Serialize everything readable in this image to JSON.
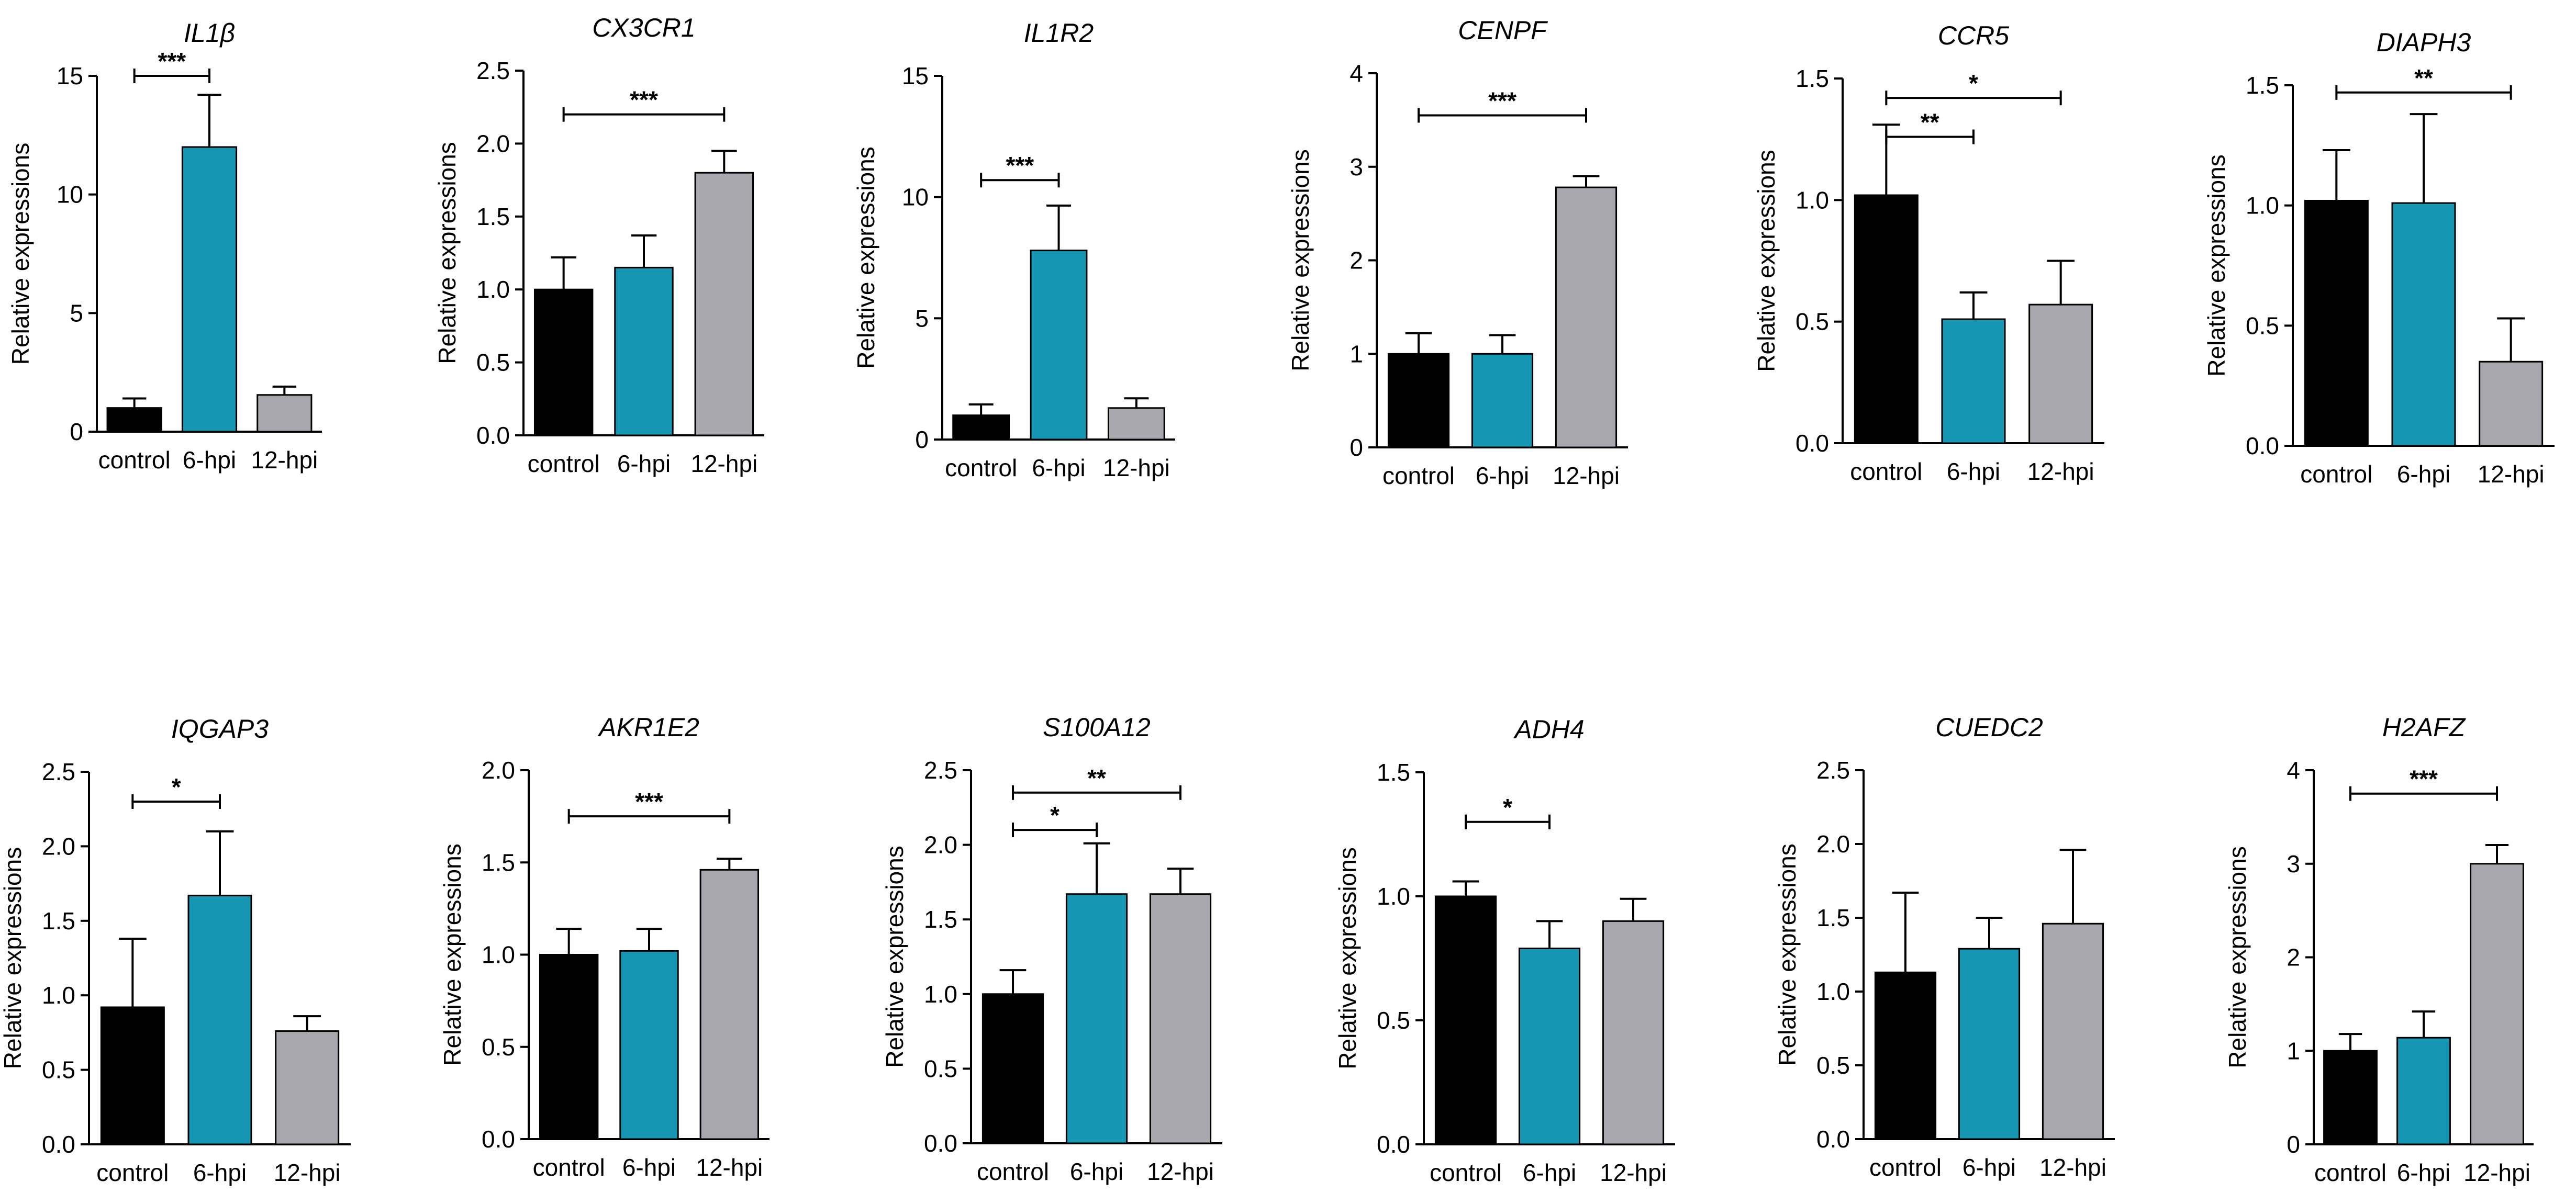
{
  "figure": {
    "ylabel_common": "Relative expressions"
  },
  "chart_data": [
    {
      "type": "bar",
      "title": "IL1β",
      "xlabel": "",
      "ylabel": "Relative expressions",
      "categories": [
        "control",
        "6-hpi",
        "12-hpi"
      ],
      "values": [
        1.0,
        12.0,
        1.55
      ],
      "errors": [
        0.4,
        2.2,
        0.35
      ],
      "colors": [
        "#000000",
        "#1597b4",
        "#a8a7ad"
      ],
      "ylim": [
        0,
        15
      ],
      "yticks": [
        "0",
        "5",
        "10",
        "15"
      ],
      "significance": [
        {
          "from": 0,
          "to": 1,
          "label": "***",
          "y": 15.0
        }
      ]
    },
    {
      "type": "bar",
      "title": "CX3CR1",
      "xlabel": "",
      "ylabel": "Relative expressions",
      "categories": [
        "control",
        "6-hpi",
        "12-hpi"
      ],
      "values": [
        1.0,
        1.15,
        1.8
      ],
      "errors": [
        0.22,
        0.22,
        0.15
      ],
      "colors": [
        "#000000",
        "#1597b4",
        "#a8a7ad"
      ],
      "ylim": [
        0,
        2.5
      ],
      "yticks": [
        "0.0",
        "0.5",
        "1.0",
        "1.5",
        "2.0",
        "2.5"
      ],
      "significance": [
        {
          "from": 0,
          "to": 2,
          "label": "***",
          "y": 2.2
        }
      ]
    },
    {
      "type": "bar",
      "title": "IL1R2",
      "xlabel": "",
      "ylabel": "Relative expressions",
      "categories": [
        "control",
        "6-hpi",
        "12-hpi"
      ],
      "values": [
        1.0,
        7.8,
        1.3
      ],
      "errors": [
        0.45,
        1.85,
        0.4
      ],
      "colors": [
        "#000000",
        "#1597b4",
        "#a8a7ad"
      ],
      "ylim": [
        0,
        15
      ],
      "yticks": [
        "0",
        "5",
        "10",
        "15"
      ],
      "significance": [
        {
          "from": 0,
          "to": 1,
          "label": "***",
          "y": 10.7
        }
      ]
    },
    {
      "type": "bar",
      "title": "CENPF",
      "xlabel": "",
      "ylabel": "Relative expressions",
      "categories": [
        "control",
        "6-hpi",
        "12-hpi"
      ],
      "values": [
        1.0,
        1.0,
        2.78
      ],
      "errors": [
        0.22,
        0.2,
        0.12
      ],
      "colors": [
        "#000000",
        "#1597b4",
        "#a8a7ad"
      ],
      "ylim": [
        0,
        4
      ],
      "yticks": [
        "0",
        "1",
        "2",
        "3",
        "4"
      ],
      "significance": [
        {
          "from": 0,
          "to": 2,
          "label": "***",
          "y": 3.55
        }
      ]
    },
    {
      "type": "bar",
      "title": "CCR5",
      "xlabel": "",
      "ylabel": "Relative expressions",
      "categories": [
        "control",
        "6-hpi",
        "12-hpi"
      ],
      "values": [
        1.02,
        0.51,
        0.57
      ],
      "errors": [
        0.29,
        0.11,
        0.18
      ],
      "colors": [
        "#000000",
        "#1597b4",
        "#a8a7ad"
      ],
      "ylim": [
        0,
        1.5
      ],
      "yticks": [
        "0.0",
        "0.5",
        "1.0",
        "1.5"
      ],
      "significance": [
        {
          "from": 0,
          "to": 1,
          "label": "**",
          "y": 1.26
        },
        {
          "from": 0,
          "to": 2,
          "label": "*",
          "y": 1.42
        }
      ]
    },
    {
      "type": "bar",
      "title": "DIAPH3",
      "xlabel": "",
      "ylabel": "Relative expressions",
      "categories": [
        "control",
        "6-hpi",
        "12-hpi"
      ],
      "values": [
        1.02,
        1.01,
        0.35
      ],
      "errors": [
        0.21,
        0.37,
        0.18
      ],
      "colors": [
        "#000000",
        "#1597b4",
        "#a8a7ad"
      ],
      "ylim": [
        0,
        1.5
      ],
      "yticks": [
        "0.0",
        "0.5",
        "1.0",
        "1.5"
      ],
      "significance": [
        {
          "from": 0,
          "to": 2,
          "label": "**",
          "y": 1.47
        }
      ]
    },
    {
      "type": "bar",
      "title": "IQGAP3",
      "xlabel": "",
      "ylabel": "Relative expressions",
      "categories": [
        "control",
        "6-hpi",
        "12-hpi"
      ],
      "values": [
        0.92,
        1.67,
        0.76
      ],
      "errors": [
        0.46,
        0.43,
        0.1
      ],
      "colors": [
        "#000000",
        "#1597b4",
        "#a8a7ad"
      ],
      "ylim": [
        0,
        2.5
      ],
      "yticks": [
        "0.0",
        "0.5",
        "1.0",
        "1.5",
        "2.0",
        "2.5"
      ],
      "significance": [
        {
          "from": 0,
          "to": 1,
          "label": "*",
          "y": 2.3
        }
      ]
    },
    {
      "type": "bar",
      "title": "AKR1E2",
      "xlabel": "",
      "ylabel": "Relative expressions",
      "categories": [
        "control",
        "6-hpi",
        "12-hpi"
      ],
      "values": [
        1.0,
        1.02,
        1.46
      ],
      "errors": [
        0.14,
        0.12,
        0.06
      ],
      "colors": [
        "#000000",
        "#1597b4",
        "#a8a7ad"
      ],
      "ylim": [
        0,
        2.0
      ],
      "yticks": [
        "0.0",
        "0.5",
        "1.0",
        "1.5",
        "2.0"
      ],
      "significance": [
        {
          "from": 0,
          "to": 2,
          "label": "***",
          "y": 1.75
        }
      ]
    },
    {
      "type": "bar",
      "title": "S100A12",
      "xlabel": "",
      "ylabel": "Relative expressions",
      "categories": [
        "control",
        "6-hpi",
        "12-hpi"
      ],
      "values": [
        1.0,
        1.67,
        1.67
      ],
      "errors": [
        0.16,
        0.34,
        0.17
      ],
      "colors": [
        "#000000",
        "#1597b4",
        "#a8a7ad"
      ],
      "ylim": [
        0,
        2.5
      ],
      "yticks": [
        "0.0",
        "0.5",
        "1.0",
        "1.5",
        "2.0",
        "2.5"
      ],
      "significance": [
        {
          "from": 0,
          "to": 1,
          "label": "*",
          "y": 2.1
        },
        {
          "from": 0,
          "to": 2,
          "label": "**",
          "y": 2.35
        }
      ]
    },
    {
      "type": "bar",
      "title": "ADH4",
      "xlabel": "",
      "ylabel": "Relative expressions",
      "categories": [
        "control",
        "6-hpi",
        "12-hpi"
      ],
      "values": [
        1.0,
        0.79,
        0.9
      ],
      "errors": [
        0.06,
        0.11,
        0.09
      ],
      "colors": [
        "#000000",
        "#1597b4",
        "#a8a7ad"
      ],
      "ylim": [
        0,
        1.5
      ],
      "yticks": [
        "0.0",
        "0.5",
        "1.0",
        "1.5"
      ],
      "significance": [
        {
          "from": 0,
          "to": 1,
          "label": "*",
          "y": 1.3
        }
      ]
    },
    {
      "type": "bar",
      "title": "CUEDC2",
      "xlabel": "",
      "ylabel": "Relative expressions",
      "categories": [
        "control",
        "6-hpi",
        "12-hpi"
      ],
      "values": [
        1.13,
        1.29,
        1.46
      ],
      "errors": [
        0.54,
        0.21,
        0.5
      ],
      "colors": [
        "#000000",
        "#1597b4",
        "#a8a7ad"
      ],
      "ylim": [
        0,
        2.5
      ],
      "yticks": [
        "0.0",
        "0.5",
        "1.0",
        "1.5",
        "2.0",
        "2.5"
      ],
      "significance": []
    },
    {
      "type": "bar",
      "title": "H2AFZ",
      "xlabel": "",
      "ylabel": "Relative expressions",
      "categories": [
        "control",
        "6-hpi",
        "12-hpi"
      ],
      "values": [
        1.0,
        1.14,
        3.0
      ],
      "errors": [
        0.18,
        0.28,
        0.2
      ],
      "colors": [
        "#000000",
        "#1597b4",
        "#a8a7ad"
      ],
      "ylim": [
        0,
        4
      ],
      "yticks": [
        "0",
        "1",
        "2",
        "3",
        "4"
      ],
      "significance": [
        {
          "from": 0,
          "to": 2,
          "label": "***",
          "y": 3.75
        }
      ]
    }
  ]
}
